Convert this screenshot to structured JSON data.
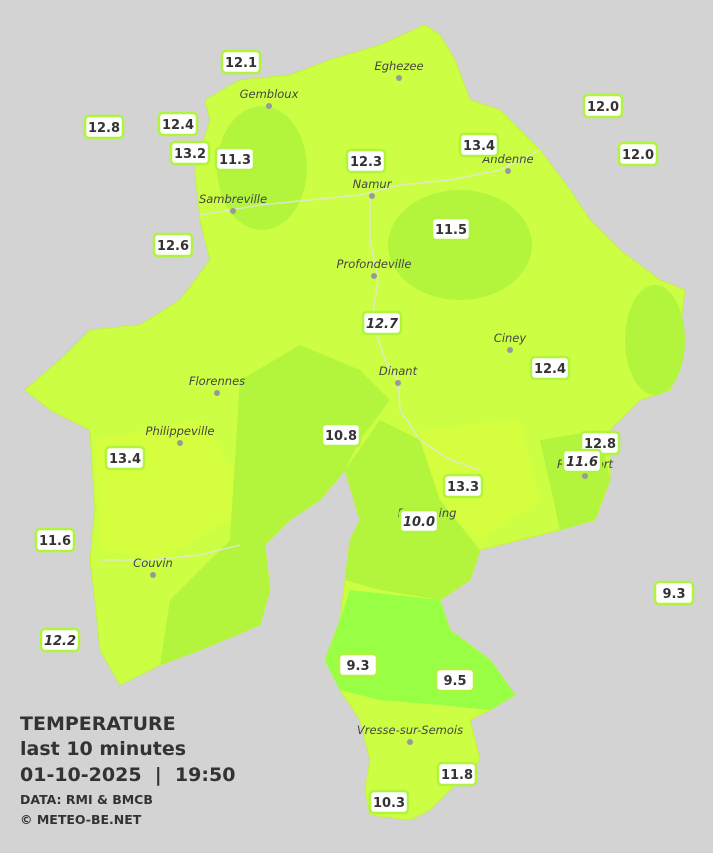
{
  "title": "TEMPERATURE",
  "subtitle": "last 10 minutes",
  "datetime": "01-10-2025  |  19:50",
  "source": "DATA: RMI & BMCB",
  "credit": "© METEO-BE.NET",
  "cities": [
    "Eghezee",
    "Gembloux",
    "Andenne",
    "Namur",
    "Sambreville",
    "Profondeville",
    "Ciney",
    "Dinant",
    "Florennes",
    "Philippeville",
    "Beauraing",
    "Rochefort",
    "Couvin",
    "Vresse-sur-Semois"
  ],
  "stations": [
    "12.1",
    "12.8",
    "12.4",
    "13.2",
    "11.3",
    "12.3",
    "13.4",
    "12.0",
    "12.0",
    "12.6",
    "11.5",
    "12.7",
    "12.4",
    "10.8",
    "12.8",
    "11.6",
    "13.4",
    "13.3",
    "10.0",
    "11.6",
    "9.3",
    "12.2",
    "9.3",
    "9.5",
    "11.8",
    "10.3"
  ]
}
